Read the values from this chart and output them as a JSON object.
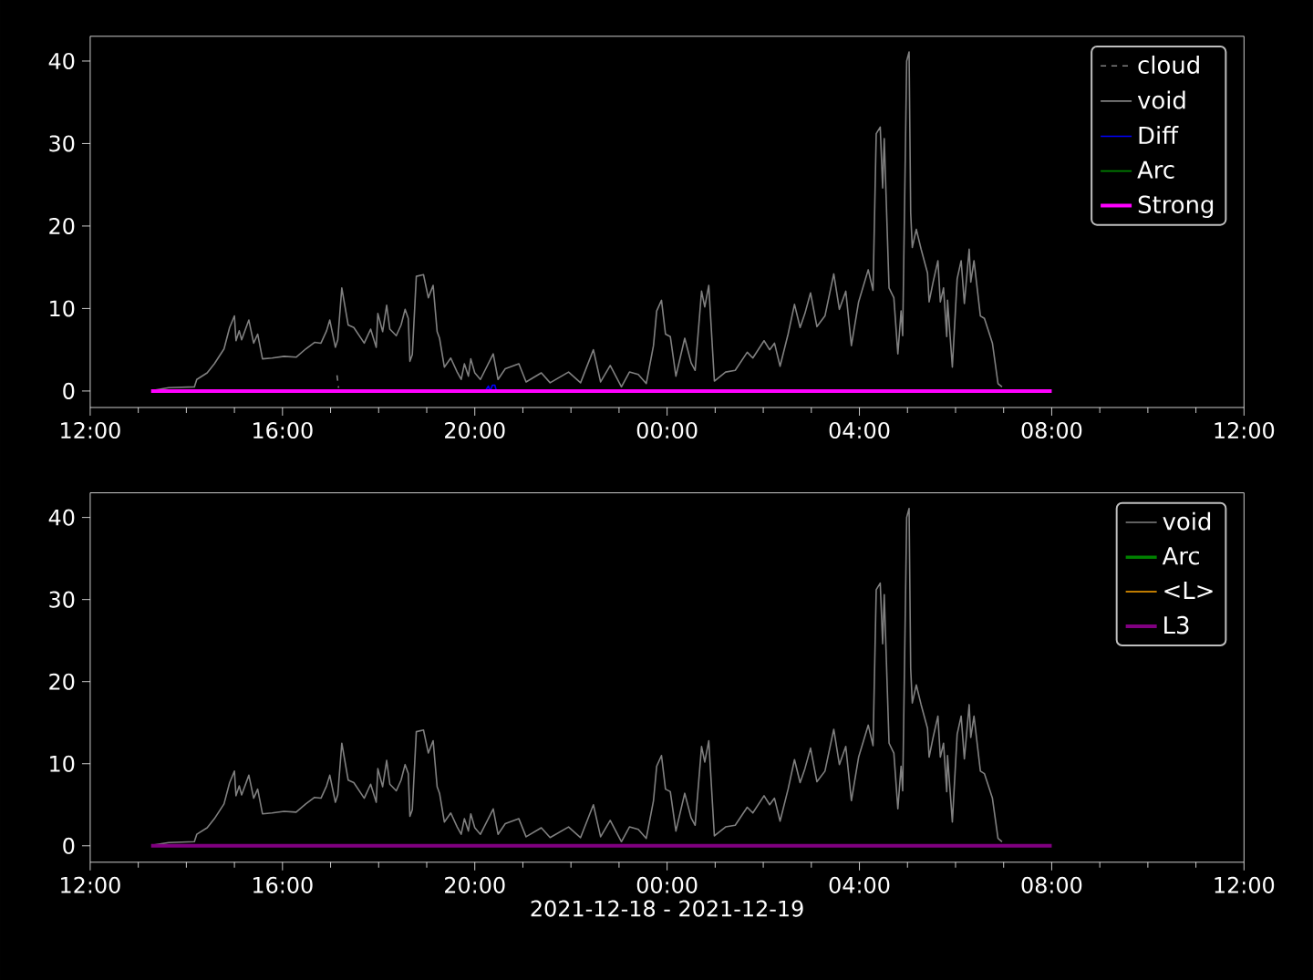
{
  "chart_data": [
    {
      "type": "line",
      "xlim": [
        "2021-12-18T12:00",
        "2021-12-19T12:00"
      ],
      "ylim": [
        -2,
        43
      ],
      "legend": "top right",
      "xticks": [
        {
          "value": "2021-12-18T12:00",
          "label": "12:00"
        },
        {
          "value": "2021-12-18T16:00",
          "label": "16:00"
        },
        {
          "value": "2021-12-18T20:00",
          "label": "20:00"
        },
        {
          "value": "2021-12-19T00:00",
          "label": "00:00"
        },
        {
          "value": "2021-12-19T04:00",
          "label": "04:00"
        },
        {
          "value": "2021-12-19T08:00",
          "label": "08:00"
        },
        {
          "value": "2021-12-19T12:00",
          "label": "12:00"
        }
      ],
      "yticks": [
        0,
        10,
        20,
        30,
        40
      ],
      "series": [
        {
          "name": "cloud",
          "color": "#808080",
          "line_style": "dashed",
          "x": [
            "2021-12-18T17:08",
            "2021-12-18T17:10"
          ],
          "values": [
            1.9,
            0.4
          ]
        },
        {
          "name": "void",
          "color": "#808080",
          "x": [
            "2021-12-18T13:20",
            "2021-12-18T13:38",
            "2021-12-18T14:10",
            "2021-12-18T14:13",
            "2021-12-18T14:26",
            "2021-12-18T14:35",
            "2021-12-18T14:47",
            "2021-12-18T14:54",
            "2021-12-18T15:00",
            "2021-12-18T15:02",
            "2021-12-18T15:06",
            "2021-12-18T15:09",
            "2021-12-18T15:18",
            "2021-12-18T15:24",
            "2021-12-18T15:29",
            "2021-12-18T15:35",
            "2021-12-18T15:47",
            "2021-12-18T16:02",
            "2021-12-18T16:17",
            "2021-12-18T16:29",
            "2021-12-18T16:40",
            "2021-12-18T16:48",
            "2021-12-18T16:55",
            "2021-12-18T16:59",
            "2021-12-18T17:06",
            "2021-12-18T17:09",
            "2021-12-18T17:14",
            "2021-12-18T17:22",
            "2021-12-18T17:29",
            "2021-12-18T17:42",
            "2021-12-18T17:50",
            "2021-12-18T17:57",
            "2021-12-18T17:59",
            "2021-12-18T18:05",
            "2021-12-18T18:10",
            "2021-12-18T18:14",
            "2021-12-18T18:22",
            "2021-12-18T18:28",
            "2021-12-18T18:33",
            "2021-12-18T18:37",
            "2021-12-18T18:39",
            "2021-12-18T18:42",
            "2021-12-18T18:47",
            "2021-12-18T18:56",
            "2021-12-18T19:02",
            "2021-12-18T19:08",
            "2021-12-18T19:13",
            "2021-12-18T19:16",
            "2021-12-18T19:22",
            "2021-12-18T19:30",
            "2021-12-18T19:38",
            "2021-12-18T19:43",
            "2021-12-18T19:47",
            "2021-12-18T19:52",
            "2021-12-18T19:55",
            "2021-12-18T20:00",
            "2021-12-18T20:07",
            "2021-12-18T20:23",
            "2021-12-18T20:29",
            "2021-12-18T20:38",
            "2021-12-18T20:55",
            "2021-12-18T21:04",
            "2021-12-18T21:23",
            "2021-12-18T21:34",
            "2021-12-18T21:57",
            "2021-12-18T22:12",
            "2021-12-18T22:28",
            "2021-12-18T22:37",
            "2021-12-18T22:49",
            "2021-12-18T23:03",
            "2021-12-18T23:13",
            "2021-12-18T23:24",
            "2021-12-18T23:34",
            "2021-12-18T23:43",
            "2021-12-18T23:47",
            "2021-12-18T23:53",
            "2021-12-18T23:58",
            "2021-12-19T00:04",
            "2021-12-19T00:11",
            "2021-12-19T00:22",
            "2021-12-19T00:30",
            "2021-12-19T00:35",
            "2021-12-19T00:43",
            "2021-12-19T00:47",
            "2021-12-19T00:52",
            "2021-12-19T00:59",
            "2021-12-19T01:13",
            "2021-12-19T01:25",
            "2021-12-19T01:40",
            "2021-12-19T01:47",
            "2021-12-19T02:01",
            "2021-12-19T02:08",
            "2021-12-19T02:14",
            "2021-12-19T02:21",
            "2021-12-19T02:31",
            "2021-12-19T02:39",
            "2021-12-19T02:46",
            "2021-12-19T02:52",
            "2021-12-19T02:59",
            "2021-12-19T03:07",
            "2021-12-19T03:17",
            "2021-12-19T03:28",
            "2021-12-19T03:35",
            "2021-12-19T03:43",
            "2021-12-19T03:50",
            "2021-12-19T03:59",
            "2021-12-19T04:11",
            "2021-12-19T04:17",
            "2021-12-19T04:21",
            "2021-12-19T04:26",
            "2021-12-19T04:29",
            "2021-12-19T04:31",
            "2021-12-19T04:37",
            "2021-12-19T04:43",
            "2021-12-19T04:48",
            "2021-12-19T04:52",
            "2021-12-19T04:54",
            "2021-12-19T04:59",
            "2021-12-19T05:02",
            "2021-12-19T05:04",
            "2021-12-19T05:06",
            "2021-12-19T05:11",
            "2021-12-19T05:17",
            "2021-12-19T05:25",
            "2021-12-19T05:27",
            "2021-12-19T05:32",
            "2021-12-19T05:38",
            "2021-12-19T05:41",
            "2021-12-19T05:45",
            "2021-12-19T05:49",
            "2021-12-19T05:50",
            "2021-12-19T05:56",
            "2021-12-19T06:02",
            "2021-12-19T06:07",
            "2021-12-19T06:11",
            "2021-12-19T06:17",
            "2021-12-19T06:19",
            "2021-12-19T06:23",
            "2021-12-19T06:31",
            "2021-12-19T06:36",
            "2021-12-19T06:41",
            "2021-12-19T06:46",
            "2021-12-19T06:53",
            "2021-12-19T06:58"
          ],
          "values": [
            0.1,
            0.4,
            0.5,
            1.4,
            2.2,
            3.3,
            5.1,
            7.7,
            9.1,
            6.1,
            7.3,
            6.2,
            8.6,
            5.8,
            6.9,
            3.9,
            4.0,
            4.2,
            4.1,
            5.1,
            5.9,
            5.8,
            7.3,
            8.6,
            5.3,
            6.2,
            12.5,
            8.0,
            7.7,
            5.8,
            7.5,
            5.3,
            9.4,
            7.2,
            10.4,
            7.5,
            6.7,
            8.0,
            9.9,
            8.8,
            3.6,
            4.4,
            13.9,
            14.1,
            11.3,
            12.8,
            7.2,
            6.4,
            2.9,
            4.0,
            2.3,
            1.4,
            3.3,
            1.8,
            3.9,
            2.2,
            1.4,
            4.5,
            1.4,
            2.7,
            3.3,
            1.1,
            2.2,
            1.0,
            2.3,
            1.0,
            5.0,
            1.1,
            3.1,
            0.5,
            2.3,
            2.0,
            0.9,
            5.5,
            9.7,
            11.0,
            6.9,
            6.6,
            1.8,
            6.4,
            3.4,
            2.5,
            12.1,
            10.2,
            12.8,
            1.2,
            2.3,
            2.5,
            4.7,
            4.0,
            6.1,
            5.0,
            5.8,
            3.0,
            6.9,
            10.5,
            7.7,
            9.4,
            11.9,
            7.8,
            9.1,
            14.2,
            9.9,
            12.1,
            5.5,
            10.8,
            14.7,
            12.2,
            31.2,
            32.0,
            24.6,
            30.6,
            12.5,
            11.3,
            4.5,
            9.7,
            6.7,
            40.0,
            41.1,
            21.6,
            17.4,
            19.6,
            17.2,
            14.3,
            10.8,
            13.2,
            15.8,
            10.8,
            12.5,
            6.6,
            11.0,
            2.9,
            13.6,
            15.8,
            10.6,
            17.2,
            13.2,
            15.8,
            9.1,
            8.8,
            7.3,
            5.8,
            0.9,
            0.5
          ]
        },
        {
          "name": "Diff",
          "color": "#0000ff",
          "x": [
            "2021-12-18T20:13",
            "2021-12-18T20:17",
            "2021-12-18T20:19",
            "2021-12-18T20:22",
            "2021-12-18T20:25",
            "2021-12-18T20:27"
          ],
          "values": [
            0,
            0.6,
            0,
            0.7,
            0.7,
            0
          ]
        },
        {
          "name": "Arc",
          "color": "#008000",
          "values": [
            null
          ]
        },
        {
          "name": "Strong",
          "color": "#ff00ff",
          "x": [
            "2021-12-18T13:16",
            "2021-12-19T08:00"
          ],
          "values": [
            0,
            0
          ]
        }
      ]
    },
    {
      "type": "line",
      "xlim": [
        "2021-12-18T12:00",
        "2021-12-19T12:00"
      ],
      "ylim": [
        -2,
        43
      ],
      "legend": "top right",
      "xlabel": "2021-12-18 - 2021-12-19",
      "xticks": [
        {
          "value": "2021-12-18T12:00",
          "label": "12:00"
        },
        {
          "value": "2021-12-18T16:00",
          "label": "16:00"
        },
        {
          "value": "2021-12-18T20:00",
          "label": "20:00"
        },
        {
          "value": "2021-12-19T00:00",
          "label": "00:00"
        },
        {
          "value": "2021-12-19T04:00",
          "label": "04:00"
        },
        {
          "value": "2021-12-19T08:00",
          "label": "08:00"
        },
        {
          "value": "2021-12-19T12:00",
          "label": "12:00"
        }
      ],
      "yticks": [
        0,
        10,
        20,
        30,
        40
      ],
      "series": [
        {
          "name": "void",
          "color": "#808080",
          "x": [
            "2021-12-18T13:20",
            "2021-12-18T13:38",
            "2021-12-18T14:10",
            "2021-12-18T14:13",
            "2021-12-18T14:26",
            "2021-12-18T14:35",
            "2021-12-18T14:47",
            "2021-12-18T14:54",
            "2021-12-18T15:00",
            "2021-12-18T15:02",
            "2021-12-18T15:06",
            "2021-12-18T15:09",
            "2021-12-18T15:18",
            "2021-12-18T15:24",
            "2021-12-18T15:29",
            "2021-12-18T15:35",
            "2021-12-18T15:47",
            "2021-12-18T16:02",
            "2021-12-18T16:17",
            "2021-12-18T16:29",
            "2021-12-18T16:40",
            "2021-12-18T16:48",
            "2021-12-18T16:55",
            "2021-12-18T16:59",
            "2021-12-18T17:06",
            "2021-12-18T17:09",
            "2021-12-18T17:14",
            "2021-12-18T17:22",
            "2021-12-18T17:29",
            "2021-12-18T17:42",
            "2021-12-18T17:50",
            "2021-12-18T17:57",
            "2021-12-18T17:59",
            "2021-12-18T18:05",
            "2021-12-18T18:10",
            "2021-12-18T18:14",
            "2021-12-18T18:22",
            "2021-12-18T18:28",
            "2021-12-18T18:33",
            "2021-12-18T18:37",
            "2021-12-18T18:39",
            "2021-12-18T18:42",
            "2021-12-18T18:47",
            "2021-12-18T18:56",
            "2021-12-18T19:02",
            "2021-12-18T19:08",
            "2021-12-18T19:13",
            "2021-12-18T19:16",
            "2021-12-18T19:22",
            "2021-12-18T19:30",
            "2021-12-18T19:38",
            "2021-12-18T19:43",
            "2021-12-18T19:47",
            "2021-12-18T19:52",
            "2021-12-18T19:55",
            "2021-12-18T20:00",
            "2021-12-18T20:07",
            "2021-12-18T20:23",
            "2021-12-18T20:29",
            "2021-12-18T20:38",
            "2021-12-18T20:55",
            "2021-12-18T21:04",
            "2021-12-18T21:23",
            "2021-12-18T21:34",
            "2021-12-18T21:57",
            "2021-12-18T22:12",
            "2021-12-18T22:28",
            "2021-12-18T22:37",
            "2021-12-18T22:49",
            "2021-12-18T23:03",
            "2021-12-18T23:13",
            "2021-12-18T23:24",
            "2021-12-18T23:34",
            "2021-12-18T23:43",
            "2021-12-18T23:47",
            "2021-12-18T23:53",
            "2021-12-18T23:58",
            "2021-12-19T00:04",
            "2021-12-19T00:11",
            "2021-12-19T00:22",
            "2021-12-19T00:30",
            "2021-12-19T00:35",
            "2021-12-19T00:43",
            "2021-12-19T00:47",
            "2021-12-19T00:52",
            "2021-12-19T00:59",
            "2021-12-19T01:13",
            "2021-12-19T01:25",
            "2021-12-19T01:40",
            "2021-12-19T01:47",
            "2021-12-19T02:01",
            "2021-12-19T02:08",
            "2021-12-19T02:14",
            "2021-12-19T02:21",
            "2021-12-19T02:31",
            "2021-12-19T02:39",
            "2021-12-19T02:46",
            "2021-12-19T02:52",
            "2021-12-19T02:59",
            "2021-12-19T03:07",
            "2021-12-19T03:17",
            "2021-12-19T03:28",
            "2021-12-19T03:35",
            "2021-12-19T03:43",
            "2021-12-19T03:50",
            "2021-12-19T03:59",
            "2021-12-19T04:11",
            "2021-12-19T04:17",
            "2021-12-19T04:21",
            "2021-12-19T04:26",
            "2021-12-19T04:29",
            "2021-12-19T04:31",
            "2021-12-19T04:37",
            "2021-12-19T04:43",
            "2021-12-19T04:48",
            "2021-12-19T04:52",
            "2021-12-19T04:54",
            "2021-12-19T04:59",
            "2021-12-19T05:02",
            "2021-12-19T05:04",
            "2021-12-19T05:06",
            "2021-12-19T05:11",
            "2021-12-19T05:17",
            "2021-12-19T05:25",
            "2021-12-19T05:27",
            "2021-12-19T05:32",
            "2021-12-19T05:38",
            "2021-12-19T05:41",
            "2021-12-19T05:45",
            "2021-12-19T05:49",
            "2021-12-19T05:50",
            "2021-12-19T05:56",
            "2021-12-19T06:02",
            "2021-12-19T06:07",
            "2021-12-19T06:11",
            "2021-12-19T06:17",
            "2021-12-19T06:19",
            "2021-12-19T06:23",
            "2021-12-19T06:31",
            "2021-12-19T06:36",
            "2021-12-19T06:41",
            "2021-12-19T06:46",
            "2021-12-19T06:53",
            "2021-12-19T06:58"
          ],
          "values": [
            0.1,
            0.4,
            0.5,
            1.4,
            2.2,
            3.3,
            5.1,
            7.7,
            9.1,
            6.1,
            7.3,
            6.2,
            8.6,
            5.8,
            6.9,
            3.9,
            4.0,
            4.2,
            4.1,
            5.1,
            5.9,
            5.8,
            7.3,
            8.6,
            5.3,
            6.2,
            12.5,
            8.0,
            7.7,
            5.8,
            7.5,
            5.3,
            9.4,
            7.2,
            10.4,
            7.5,
            6.7,
            8.0,
            9.9,
            8.8,
            3.6,
            4.4,
            13.9,
            14.1,
            11.3,
            12.8,
            7.2,
            6.4,
            2.9,
            4.0,
            2.3,
            1.4,
            3.3,
            1.8,
            3.9,
            2.2,
            1.4,
            4.5,
            1.4,
            2.7,
            3.3,
            1.1,
            2.2,
            1.0,
            2.3,
            1.0,
            5.0,
            1.1,
            3.1,
            0.5,
            2.3,
            2.0,
            0.9,
            5.5,
            9.7,
            11.0,
            6.9,
            6.6,
            1.8,
            6.4,
            3.4,
            2.5,
            12.1,
            10.2,
            12.8,
            1.2,
            2.3,
            2.5,
            4.7,
            4.0,
            6.1,
            5.0,
            5.8,
            3.0,
            6.9,
            10.5,
            7.7,
            9.4,
            11.9,
            7.8,
            9.1,
            14.2,
            9.9,
            12.1,
            5.5,
            10.8,
            14.7,
            12.2,
            31.2,
            32.0,
            24.6,
            30.6,
            12.5,
            11.3,
            4.5,
            9.7,
            6.7,
            40.0,
            41.1,
            21.6,
            17.4,
            19.6,
            17.2,
            14.3,
            10.8,
            13.2,
            15.8,
            10.8,
            12.5,
            6.6,
            11.0,
            2.9,
            13.6,
            15.8,
            10.6,
            17.2,
            13.2,
            15.8,
            9.1,
            8.8,
            7.3,
            5.8,
            0.9,
            0.5
          ]
        },
        {
          "name": "Arc",
          "color": "#008000",
          "values": [
            null
          ]
        },
        {
          "name": "<L>",
          "color": "#ffa500",
          "values": [
            null
          ]
        },
        {
          "name": "L3",
          "color": "#800080",
          "x": [
            "2021-12-18T13:16",
            "2021-12-19T08:00"
          ],
          "values": [
            0,
            0
          ]
        }
      ]
    }
  ]
}
